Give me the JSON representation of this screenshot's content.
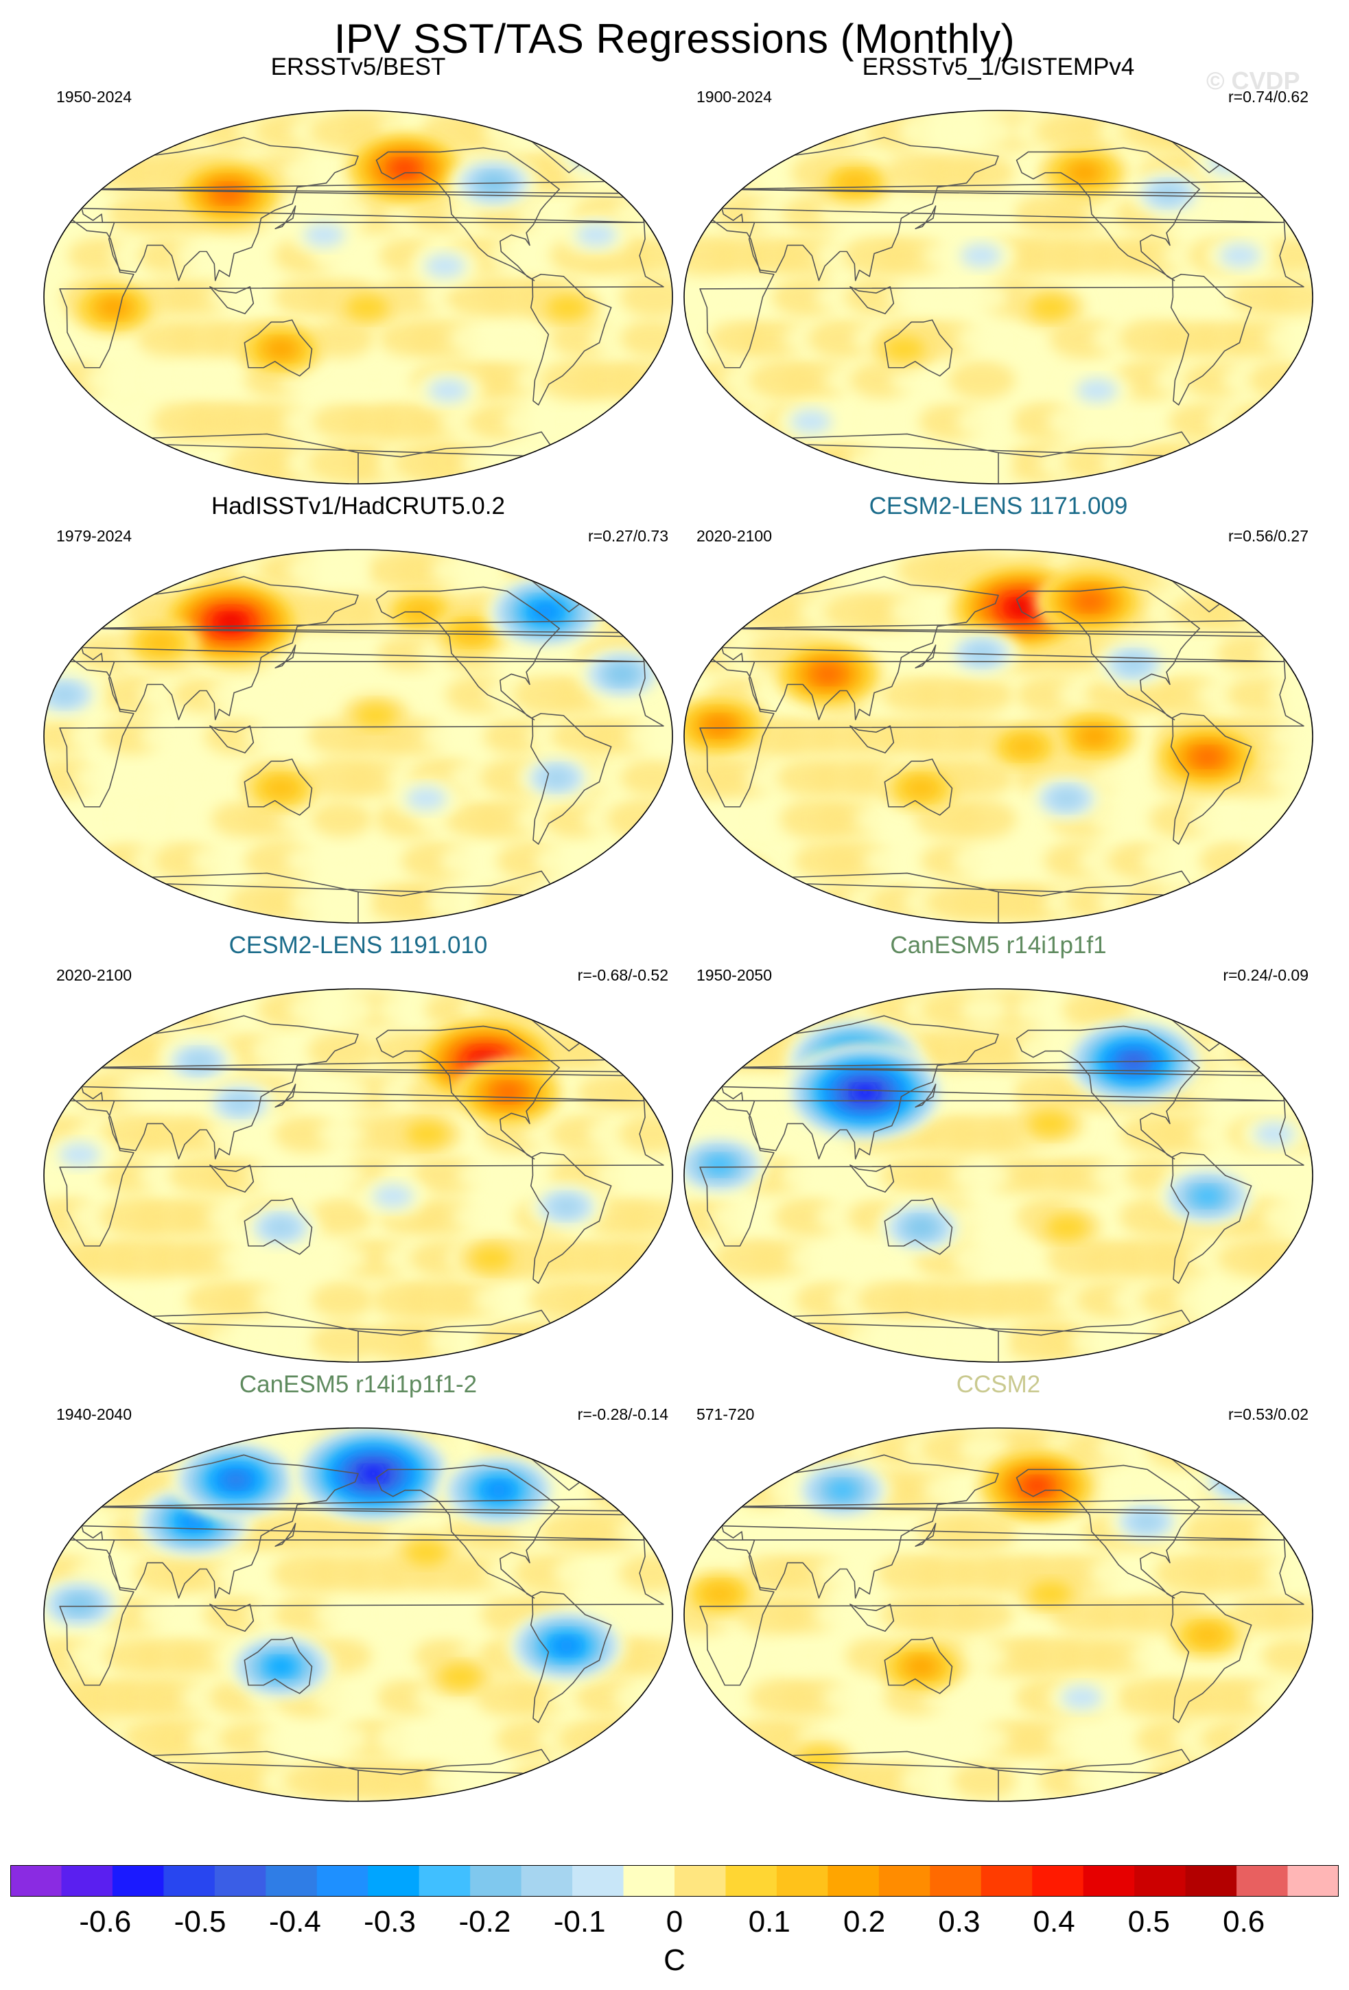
{
  "title": "IPV SST/TAS Regressions (Monthly)",
  "watermark": "© CVDP",
  "panels": [
    {
      "title": "ERSSTv5/BEST",
      "period": "1950-2024",
      "corr": "",
      "title_color": "#000000",
      "anomalies": [
        {
          "lon": 100,
          "lat": 50,
          "value": 0.3
        },
        {
          "lon": -150,
          "lat": 62,
          "value": 0.35
        },
        {
          "lon": -95,
          "lat": 55,
          "value": -0.2
        },
        {
          "lon": -20,
          "lat": 70,
          "value": -0.15
        },
        {
          "lon": -130,
          "lat": 15,
          "value": -0.1
        },
        {
          "lon": -40,
          "lat": 30,
          "value": -0.1
        },
        {
          "lon": 135,
          "lat": -25,
          "value": 0.2
        },
        {
          "lon": -175,
          "lat": -5,
          "value": 0.1
        },
        {
          "lon": -125,
          "lat": -45,
          "value": -0.1
        },
        {
          "lon": 40,
          "lat": -5,
          "value": 0.2
        },
        {
          "lon": 160,
          "lat": 30,
          "value": -0.1
        },
        {
          "lon": 0,
          "lat": -70,
          "value": -0.1
        },
        {
          "lon": -60,
          "lat": -5,
          "value": 0.1
        }
      ]
    },
    {
      "title": "ERSSTv5_1/GISTEMPv4",
      "period": "1900-2024",
      "corr": "r=0.74/0.62",
      "title_color": "#000000",
      "anomalies": [
        {
          "lon": 90,
          "lat": 55,
          "value": 0.15
        },
        {
          "lon": -125,
          "lat": 60,
          "value": 0.2
        },
        {
          "lon": -75,
          "lat": 50,
          "value": -0.15
        },
        {
          "lon": -30,
          "lat": 65,
          "value": -0.1
        },
        {
          "lon": 170,
          "lat": 20,
          "value": -0.1
        },
        {
          "lon": -150,
          "lat": -5,
          "value": 0.1
        },
        {
          "lon": -120,
          "lat": -45,
          "value": -0.1
        },
        {
          "lon": 125,
          "lat": -25,
          "value": 0.1
        },
        {
          "lon": 60,
          "lat": -60,
          "value": -0.1
        },
        {
          "lon": -40,
          "lat": 20,
          "value": -0.1
        }
      ]
    },
    {
      "title": "HadISSTv1/HadCRUT5.0.2",
      "period": "1979-2024",
      "corr": "r=0.27/0.73",
      "title_color": "#000000",
      "anomalies": [
        {
          "lon": 100,
          "lat": 55,
          "value": 0.45
        },
        {
          "lon": 60,
          "lat": 45,
          "value": 0.15
        },
        {
          "lon": -140,
          "lat": 60,
          "value": 0.15
        },
        {
          "lon": -110,
          "lat": 50,
          "value": 0.15
        },
        {
          "lon": -60,
          "lat": 60,
          "value": -0.35
        },
        {
          "lon": 10,
          "lat": 20,
          "value": -0.15
        },
        {
          "lon": -25,
          "lat": 30,
          "value": -0.2
        },
        {
          "lon": -65,
          "lat": -20,
          "value": -0.15
        },
        {
          "lon": 135,
          "lat": -25,
          "value": 0.15
        },
        {
          "lon": -170,
          "lat": 10,
          "value": 0.1
        },
        {
          "lon": -140,
          "lat": -30,
          "value": -0.1
        },
        {
          "lon": 0,
          "lat": -75,
          "value": -0.1
        }
      ]
    },
    {
      "title": "CESM2-LENS 1171.009",
      "period": "2020-2100",
      "corr": "r=0.56/0.27",
      "title_color": "#1a6b8a",
      "anomalies": [
        {
          "lon": -165,
          "lat": 62,
          "value": 0.45
        },
        {
          "lon": -120,
          "lat": 65,
          "value": 0.3
        },
        {
          "lon": 20,
          "lat": 5,
          "value": 0.25
        },
        {
          "lon": 80,
          "lat": 30,
          "value": 0.3
        },
        {
          "lon": -60,
          "lat": -10,
          "value": 0.3
        },
        {
          "lon": -125,
          "lat": 0,
          "value": 0.2
        },
        {
          "lon": -165,
          "lat": -5,
          "value": 0.15
        },
        {
          "lon": 170,
          "lat": 40,
          "value": -0.15
        },
        {
          "lon": -140,
          "lat": -30,
          "value": -0.15
        },
        {
          "lon": 135,
          "lat": -25,
          "value": 0.15
        },
        {
          "lon": -100,
          "lat": 35,
          "value": -0.15
        },
        {
          "lon": 0,
          "lat": -70,
          "value": 0.2
        }
      ]
    },
    {
      "title": "CESM2-LENS 1191.010",
      "period": "2020-2100",
      "corr": "r=-0.68/-0.52",
      "title_color": "#1a6b8a",
      "anomalies": [
        {
          "lon": -100,
          "lat": 55,
          "value": 0.45
        },
        {
          "lon": -90,
          "lat": 40,
          "value": 0.3
        },
        {
          "lon": 80,
          "lat": 55,
          "value": -0.15
        },
        {
          "lon": 110,
          "lat": 35,
          "value": -0.15
        },
        {
          "lon": -60,
          "lat": -15,
          "value": -0.15
        },
        {
          "lon": 135,
          "lat": -25,
          "value": -0.15
        },
        {
          "lon": 20,
          "lat": 10,
          "value": -0.1
        },
        {
          "lon": -140,
          "lat": 20,
          "value": 0.1
        },
        {
          "lon": -160,
          "lat": -10,
          "value": -0.1
        },
        {
          "lon": -100,
          "lat": -40,
          "value": 0.1
        },
        {
          "lon": 0,
          "lat": -70,
          "value": 0.1
        }
      ]
    },
    {
      "title": "CanESM5 r14i1p1f1",
      "period": "1950-2050",
      "corr": "r=0.24/-0.09",
      "title_color": "#5e8a5e",
      "anomalies": [
        {
          "lon": 90,
          "lat": 55,
          "value": -0.45
        },
        {
          "lon": 100,
          "lat": 40,
          "value": -0.55
        },
        {
          "lon": -95,
          "lat": 55,
          "value": -0.45
        },
        {
          "lon": 20,
          "lat": 5,
          "value": -0.25
        },
        {
          "lon": -60,
          "lat": -10,
          "value": -0.25
        },
        {
          "lon": 135,
          "lat": -25,
          "value": -0.2
        },
        {
          "lon": -150,
          "lat": 25,
          "value": 0.1
        },
        {
          "lon": -140,
          "lat": -25,
          "value": 0.1
        },
        {
          "lon": -20,
          "lat": 20,
          "value": -0.1
        },
        {
          "lon": 0,
          "lat": -70,
          "value": 0.1
        }
      ]
    },
    {
      "title": "CanESM5 r14i1p1f1-2",
      "period": "1940-2040",
      "corr": "r=-0.28/-0.14",
      "title_color": "#5e8a5e",
      "anomalies": [
        {
          "lon": 80,
          "lat": 45,
          "value": -0.35
        },
        {
          "lon": 100,
          "lat": 65,
          "value": -0.4
        },
        {
          "lon": -170,
          "lat": 68,
          "value": -0.55
        },
        {
          "lon": -90,
          "lat": 60,
          "value": -0.35
        },
        {
          "lon": -60,
          "lat": -15,
          "value": -0.35
        },
        {
          "lon": 135,
          "lat": -25,
          "value": -0.3
        },
        {
          "lon": 20,
          "lat": 5,
          "value": -0.2
        },
        {
          "lon": -140,
          "lat": 30,
          "value": 0.1
        },
        {
          "lon": -120,
          "lat": -30,
          "value": 0.1
        },
        {
          "lon": 0,
          "lat": -70,
          "value": -0.2
        }
      ]
    },
    {
      "title": "CCSM2",
      "period": "571-720",
      "corr": "r=0.53/0.02",
      "title_color": "#c9c98f",
      "anomalies": [
        {
          "lon": -155,
          "lat": 62,
          "value": 0.35
        },
        {
          "lon": 80,
          "lat": 60,
          "value": -0.25
        },
        {
          "lon": -20,
          "lat": 65,
          "value": -0.2
        },
        {
          "lon": -90,
          "lat": 45,
          "value": -0.15
        },
        {
          "lon": 20,
          "lat": 10,
          "value": 0.15
        },
        {
          "lon": 135,
          "lat": -25,
          "value": 0.2
        },
        {
          "lon": -60,
          "lat": -10,
          "value": 0.15
        },
        {
          "lon": -150,
          "lat": 10,
          "value": 0.1
        },
        {
          "lon": -130,
          "lat": -40,
          "value": -0.1
        },
        {
          "lon": 60,
          "lat": -70,
          "value": 0.1
        }
      ]
    }
  ],
  "chart_data": {
    "type": "heatmap",
    "title": "IPV SST/TAS Regressions (Monthly)",
    "projection": "Robinson-like global map, central meridian 180",
    "units": "C",
    "colorbar": {
      "ticks": [
        "-0.6",
        "-0.5",
        "-0.4",
        "-0.3",
        "-0.2",
        "-0.1",
        "0",
        "0.1",
        "0.2",
        "0.3",
        "0.4",
        "0.5",
        "0.6"
      ],
      "tick_values": [
        -0.6,
        -0.5,
        -0.4,
        -0.3,
        -0.2,
        -0.1,
        0,
        0.1,
        0.2,
        0.3,
        0.4,
        0.5,
        0.6
      ],
      "range": [
        -0.7,
        0.7
      ],
      "colors": [
        "#8a2be2",
        "#5a1ff0",
        "#1a1aff",
        "#2846f0",
        "#3a5ee6",
        "#2f7de6",
        "#1e90ff",
        "#00a5ff",
        "#40bfff",
        "#7fc8ee",
        "#a6d5f0",
        "#c8e6f8",
        "#ffffc0",
        "#ffe680",
        "#ffd633",
        "#ffc21a",
        "#ffa500",
        "#ff8c00",
        "#ff6a00",
        "#ff3c00",
        "#ff1a00",
        "#e60000",
        "#cc0000",
        "#b30000",
        "#e86060",
        "#ffb6b6"
      ]
    }
  }
}
